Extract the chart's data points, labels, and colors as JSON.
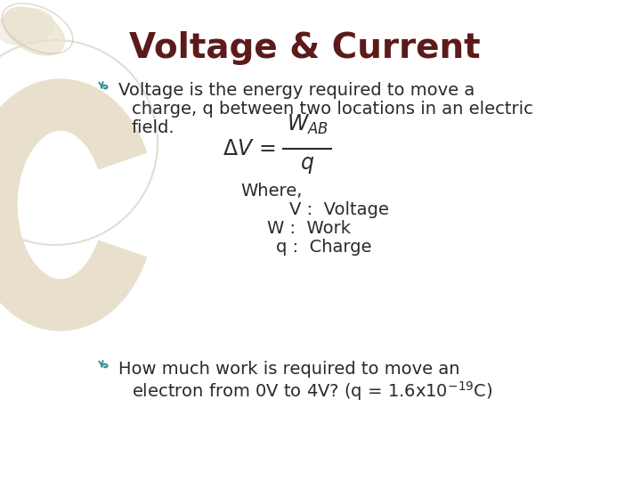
{
  "title": "Voltage & Current",
  "title_color": "#5C1A1A",
  "title_fontsize": 28,
  "bg_color": "#FFFFFF",
  "bullet_color": "#3A9090",
  "body_color": "#2A2A2A",
  "body_fontsize": 14,
  "bullet1_line1": "Voltage is the energy required to move a",
  "bullet1_line2": "charge, q between two locations in an electric",
  "bullet1_line3": "field.",
  "where_text": "Where,",
  "v_label": "V :  Voltage",
  "w_label": "W :  Work",
  "q_label": "q :  Charge",
  "bullet2_line1": "How much work is required to move an",
  "bullet2_line2": "electron from 0V to 4V? (q = 1.6x10",
  "bullet2_superscript": "-19",
  "bullet2_end": "C)",
  "deco_fill": "#E8E0CC",
  "deco_stroke": "#D4C9A8",
  "deco_ring_color": "#C8BFA8"
}
